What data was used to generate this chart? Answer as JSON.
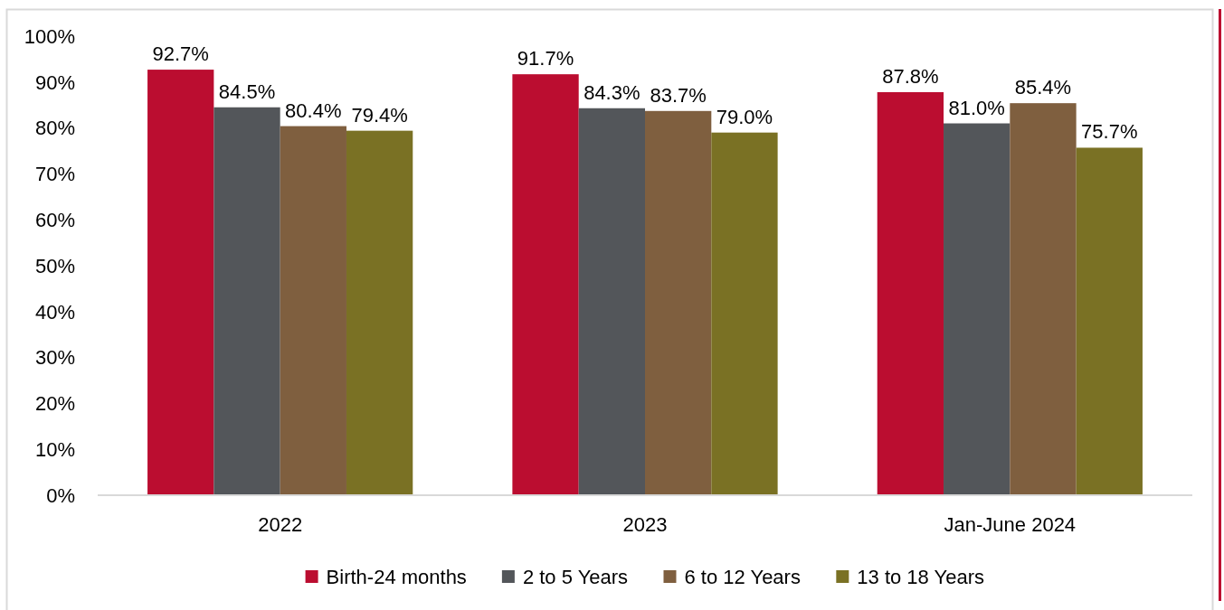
{
  "chart_data": {
    "type": "bar",
    "categories": [
      "2022",
      "2023",
      "Jan-June 2024"
    ],
    "series": [
      {
        "name": "Birth-24 months",
        "color": "#bb0d30",
        "values": [
          92.7,
          91.7,
          87.8
        ],
        "value_labels": [
          "92.7%",
          "91.7%",
          "87.8%"
        ]
      },
      {
        "name": "2 to 5 Years",
        "color": "#53565a",
        "values": [
          84.5,
          84.3,
          81.0
        ],
        "value_labels": [
          "84.5%",
          "84.3%",
          "81.0%"
        ]
      },
      {
        "name": "6 to 12 Years",
        "color": "#7f5f3f",
        "values": [
          80.4,
          83.7,
          85.4
        ],
        "value_labels": [
          "80.4%",
          "83.7%",
          "85.4%"
        ]
      },
      {
        "name": "13 to 18 Years",
        "color": "#7a7124",
        "values": [
          79.4,
          79.0,
          75.7
        ],
        "value_labels": [
          "79.4%",
          "79.0%",
          "75.7%"
        ]
      }
    ],
    "ylim": [
      0,
      100
    ],
    "yticks": [
      {
        "value": 0,
        "label": "0%"
      },
      {
        "value": 10,
        "label": "10%"
      },
      {
        "value": 20,
        "label": "20%"
      },
      {
        "value": 30,
        "label": "30%"
      },
      {
        "value": 40,
        "label": "40%"
      },
      {
        "value": 50,
        "label": "50%"
      },
      {
        "value": 60,
        "label": "60%"
      },
      {
        "value": 70,
        "label": "70%"
      },
      {
        "value": 80,
        "label": "80%"
      },
      {
        "value": 90,
        "label": "90%"
      },
      {
        "value": 100,
        "label": "100%"
      }
    ],
    "legend": "bottom"
  }
}
